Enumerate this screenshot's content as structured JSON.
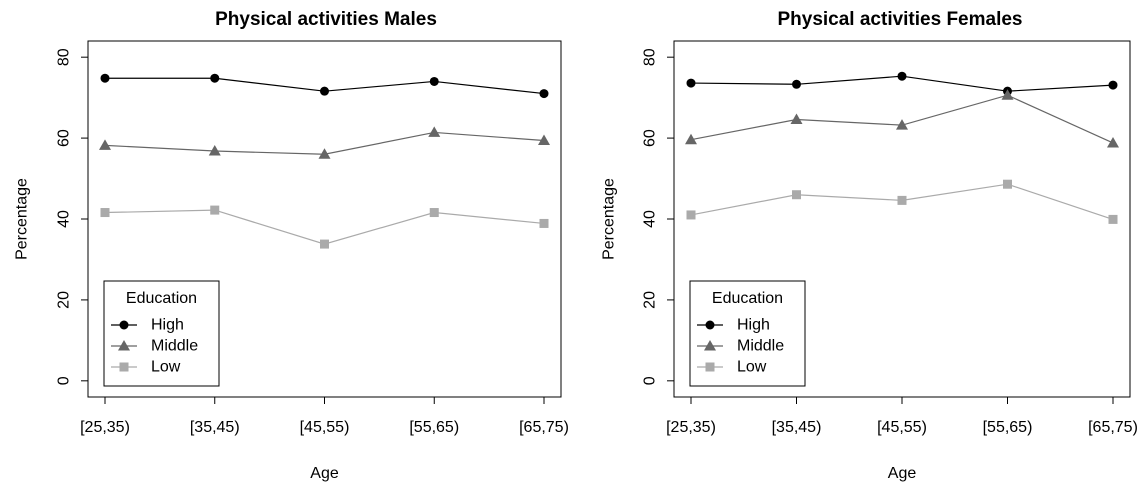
{
  "chart_data": [
    {
      "type": "line",
      "title": "Physical activities Males",
      "xlabel": "Age",
      "ylabel": "Percentage",
      "categories": [
        "[25,35)",
        "[35,45)",
        "[45,55)",
        "[55,65)",
        "[65,75)"
      ],
      "ylim": [
        0,
        80
      ],
      "yticks": [
        0,
        20,
        40,
        60,
        80
      ],
      "legend": {
        "title": "Education",
        "position": "bottom-left"
      },
      "series": [
        {
          "name": "High",
          "values": [
            74.8,
            74.8,
            71.6,
            74.0,
            71.0
          ],
          "color": "#000000",
          "marker": "circle"
        },
        {
          "name": "Middle",
          "values": [
            58.2,
            56.8,
            56.0,
            61.4,
            59.4
          ],
          "color": "#666666",
          "marker": "triangle"
        },
        {
          "name": "Low",
          "values": [
            41.6,
            42.2,
            33.8,
            41.6,
            38.9
          ],
          "color": "#aaaaaa",
          "marker": "square"
        }
      ]
    },
    {
      "type": "line",
      "title": "Physical activities  Females",
      "xlabel": "Age",
      "ylabel": "Percentage",
      "categories": [
        "[25,35)",
        "[35,45)",
        "[45,55)",
        "[55,65)",
        "[65,75)"
      ],
      "ylim": [
        0,
        80
      ],
      "yticks": [
        0,
        20,
        40,
        60,
        80
      ],
      "legend": {
        "title": "Education",
        "position": "bottom-left"
      },
      "series": [
        {
          "name": "High",
          "values": [
            73.6,
            73.3,
            75.3,
            71.6,
            73.1
          ],
          "color": "#000000",
          "marker": "circle"
        },
        {
          "name": "Middle",
          "values": [
            59.6,
            64.6,
            63.2,
            70.6,
            58.8
          ],
          "color": "#666666",
          "marker": "triangle"
        },
        {
          "name": "Low",
          "values": [
            41.0,
            46.0,
            44.6,
            48.6,
            39.9
          ],
          "color": "#aaaaaa",
          "marker": "square"
        }
      ]
    }
  ]
}
